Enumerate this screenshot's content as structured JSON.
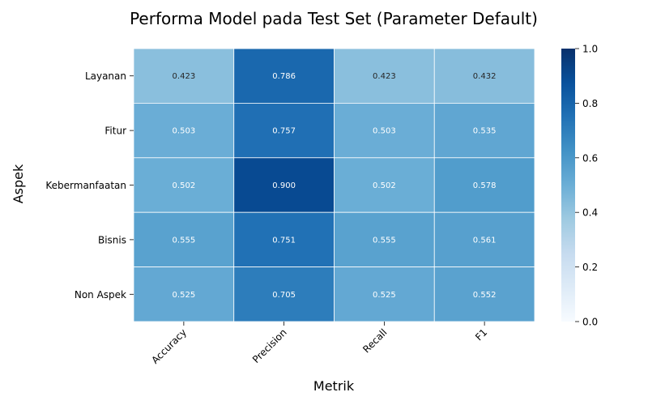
{
  "chart_data": {
    "type": "heatmap",
    "title": "Performa Model pada Test Set (Parameter Default)",
    "xlabel": "Metrik",
    "ylabel": "Aspek",
    "columns": [
      "Accuracy",
      "Precision",
      "Recall",
      "F1"
    ],
    "rows": [
      "Layanan",
      "Fitur",
      "Kebermanfaatan",
      "Bisnis",
      "Non Aspek"
    ],
    "values": [
      [
        0.423,
        0.786,
        0.423,
        0.432
      ],
      [
        0.503,
        0.757,
        0.503,
        0.535
      ],
      [
        0.502,
        0.9,
        0.502,
        0.578
      ],
      [
        0.555,
        0.751,
        0.555,
        0.561
      ],
      [
        0.525,
        0.705,
        0.525,
        0.552
      ]
    ],
    "value_labels": [
      [
        "0.423",
        "0.786",
        "0.423",
        "0.432"
      ],
      [
        "0.503",
        "0.757",
        "0.503",
        "0.535"
      ],
      [
        "0.502",
        "0.900",
        "0.502",
        "0.578"
      ],
      [
        "0.555",
        "0.751",
        "0.555",
        "0.561"
      ],
      [
        "0.525",
        "0.705",
        "0.525",
        "0.552"
      ]
    ],
    "colorbar": {
      "range": [
        0,
        1
      ],
      "ticks": [
        0.0,
        0.2,
        0.4,
        0.6,
        0.8,
        1.0
      ],
      "tick_labels": [
        "0.0",
        "0.2",
        "0.4",
        "0.6",
        "0.8",
        "1.0"
      ],
      "colormap": "Blues",
      "colors": [
        "#f7fbff",
        "#deebf7",
        "#c6dbef",
        "#9ecae1",
        "#6baed6",
        "#4292c6",
        "#2171b5",
        "#08519c",
        "#08306b"
      ]
    }
  }
}
